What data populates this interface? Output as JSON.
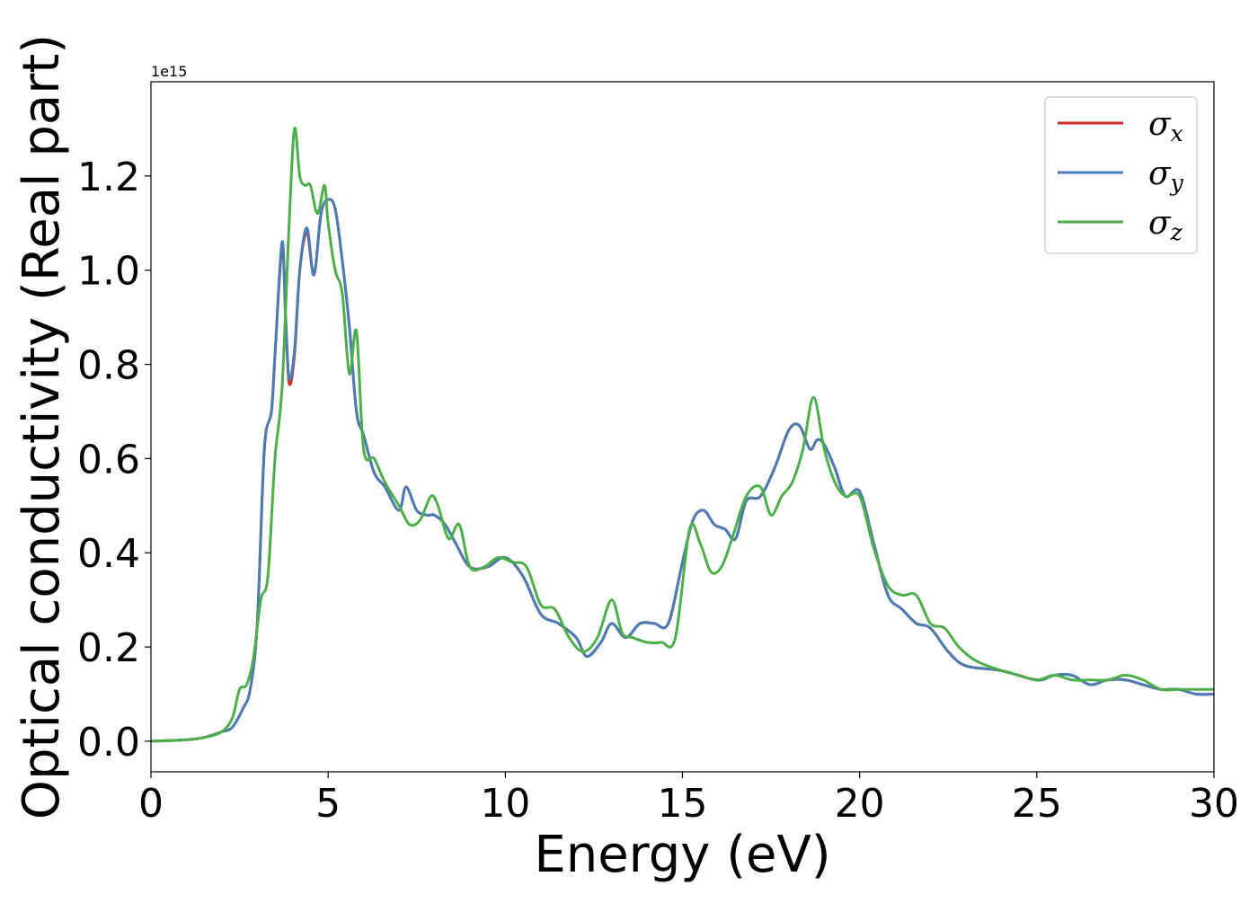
{
  "chart_data": {
    "type": "line",
    "xlabel": "Energy (eV)",
    "ylabel": "Optical conductivity (Real part)",
    "y_offset_label": "1e15",
    "xlim": [
      0,
      30
    ],
    "ylim": [
      -0.065,
      1.4
    ],
    "x_ticks": [
      0,
      5,
      10,
      15,
      20,
      25,
      30
    ],
    "x_tick_labels": [
      "0",
      "5",
      "10",
      "15",
      "20",
      "25",
      "30"
    ],
    "y_ticks": [
      0.0,
      0.2,
      0.4,
      0.6,
      0.8,
      1.0,
      1.2
    ],
    "y_tick_labels": [
      "0.0",
      "0.2",
      "0.4",
      "0.6",
      "0.8",
      "1.0",
      "1.2"
    ],
    "grid": false,
    "legend_position": "top-right",
    "series": [
      {
        "name": "σx",
        "symbol": "σ",
        "subscript": "x",
        "color": "#d62728",
        "x": [
          0,
          1,
          1.5,
          2,
          2.3,
          2.6,
          2.8,
          3.0,
          3.2,
          3.4,
          3.5,
          3.7,
          3.8,
          3.9,
          4.05,
          4.2,
          4.4,
          4.6,
          4.8,
          5.0,
          5.2,
          5.4,
          5.6,
          5.8,
          6.0,
          6.3,
          6.6,
          7.0,
          7.2,
          7.5,
          7.8,
          8.0,
          8.3,
          8.6,
          9.0,
          9.5,
          10.0,
          10.5,
          11.0,
          11.5,
          12.0,
          12.3,
          12.7,
          13.0,
          13.4,
          13.8,
          14.2,
          14.6,
          15.0,
          15.3,
          15.6,
          15.9,
          16.2,
          16.5,
          16.8,
          17.2,
          17.6,
          18.0,
          18.3,
          18.6,
          18.8,
          19.0,
          19.3,
          19.6,
          20.0,
          20.4,
          20.8,
          21.2,
          21.6,
          22.0,
          22.5,
          23.0,
          24.0,
          25.0,
          25.5,
          26.0,
          26.5,
          27.0,
          27.5,
          28.0,
          28.5,
          29.0,
          29.5,
          30.0
        ],
        "values": [
          0.0,
          0.003,
          0.008,
          0.02,
          0.03,
          0.07,
          0.11,
          0.25,
          0.62,
          0.7,
          0.82,
          1.05,
          0.9,
          0.76,
          0.82,
          1.0,
          1.08,
          0.99,
          1.12,
          1.15,
          1.13,
          1.02,
          0.88,
          0.7,
          0.65,
          0.57,
          0.54,
          0.49,
          0.54,
          0.49,
          0.48,
          0.48,
          0.46,
          0.42,
          0.37,
          0.37,
          0.39,
          0.35,
          0.27,
          0.25,
          0.22,
          0.18,
          0.21,
          0.25,
          0.22,
          0.25,
          0.25,
          0.25,
          0.38,
          0.47,
          0.49,
          0.46,
          0.45,
          0.43,
          0.51,
          0.52,
          0.58,
          0.66,
          0.67,
          0.62,
          0.64,
          0.63,
          0.58,
          0.52,
          0.53,
          0.42,
          0.31,
          0.28,
          0.25,
          0.24,
          0.19,
          0.16,
          0.15,
          0.13,
          0.14,
          0.14,
          0.12,
          0.13,
          0.13,
          0.12,
          0.11,
          0.11,
          0.1,
          0.1
        ]
      },
      {
        "name": "σy",
        "symbol": "σ",
        "subscript": "y",
        "color": "#4a7db5",
        "x": [
          0,
          1,
          1.5,
          2,
          2.3,
          2.6,
          2.8,
          3.0,
          3.2,
          3.4,
          3.5,
          3.7,
          3.8,
          3.9,
          4.05,
          4.2,
          4.4,
          4.6,
          4.8,
          5.0,
          5.2,
          5.4,
          5.6,
          5.8,
          6.0,
          6.3,
          6.6,
          7.0,
          7.2,
          7.5,
          7.8,
          8.0,
          8.3,
          8.6,
          9.0,
          9.5,
          10.0,
          10.5,
          11.0,
          11.5,
          12.0,
          12.3,
          12.7,
          13.0,
          13.4,
          13.8,
          14.2,
          14.6,
          15.0,
          15.3,
          15.6,
          15.9,
          16.2,
          16.5,
          16.8,
          17.2,
          17.6,
          18.0,
          18.3,
          18.6,
          18.8,
          19.0,
          19.3,
          19.6,
          20.0,
          20.4,
          20.8,
          21.2,
          21.6,
          22.0,
          22.5,
          23.0,
          24.0,
          25.0,
          25.5,
          26.0,
          26.5,
          27.0,
          27.5,
          28.0,
          28.5,
          29.0,
          29.5,
          30.0
        ],
        "values": [
          0.0,
          0.003,
          0.008,
          0.02,
          0.03,
          0.07,
          0.11,
          0.25,
          0.62,
          0.7,
          0.82,
          1.06,
          0.9,
          0.77,
          0.83,
          1.0,
          1.09,
          0.99,
          1.12,
          1.15,
          1.13,
          1.02,
          0.88,
          0.7,
          0.65,
          0.57,
          0.54,
          0.49,
          0.54,
          0.49,
          0.48,
          0.48,
          0.46,
          0.42,
          0.37,
          0.37,
          0.39,
          0.35,
          0.27,
          0.25,
          0.22,
          0.18,
          0.21,
          0.25,
          0.22,
          0.25,
          0.25,
          0.25,
          0.38,
          0.47,
          0.49,
          0.46,
          0.45,
          0.43,
          0.51,
          0.52,
          0.58,
          0.66,
          0.67,
          0.62,
          0.64,
          0.63,
          0.58,
          0.52,
          0.53,
          0.42,
          0.31,
          0.28,
          0.25,
          0.24,
          0.19,
          0.16,
          0.15,
          0.13,
          0.14,
          0.14,
          0.12,
          0.13,
          0.13,
          0.12,
          0.11,
          0.11,
          0.1,
          0.1
        ]
      },
      {
        "name": "σz",
        "symbol": "σ",
        "subscript": "z",
        "color": "#4daf4a",
        "x": [
          0,
          1,
          1.5,
          2,
          2.3,
          2.5,
          2.7,
          2.9,
          3.1,
          3.3,
          3.5,
          3.7,
          3.9,
          4.05,
          4.2,
          4.35,
          4.5,
          4.7,
          4.9,
          5.0,
          5.2,
          5.4,
          5.6,
          5.8,
          6.0,
          6.3,
          6.6,
          7.0,
          7.3,
          7.6,
          7.9,
          8.1,
          8.4,
          8.7,
          9.0,
          9.4,
          9.8,
          10.2,
          10.6,
          11.0,
          11.4,
          11.8,
          12.2,
          12.6,
          13.0,
          13.3,
          13.6,
          14.0,
          14.4,
          14.8,
          15.2,
          15.5,
          15.8,
          16.1,
          16.4,
          16.8,
          17.2,
          17.5,
          17.8,
          18.1,
          18.4,
          18.7,
          19.0,
          19.3,
          19.6,
          20.0,
          20.4,
          20.8,
          21.2,
          21.6,
          22.0,
          22.4,
          22.8,
          23.3,
          24.0,
          24.5,
          25.0,
          25.5,
          26.0,
          26.5,
          27.0,
          27.5,
          28.0,
          28.5,
          29.0,
          29.5,
          30.0
        ],
        "values": [
          0.0,
          0.003,
          0.008,
          0.02,
          0.05,
          0.11,
          0.12,
          0.18,
          0.3,
          0.35,
          0.6,
          0.75,
          1.1,
          1.3,
          1.2,
          1.18,
          1.18,
          1.12,
          1.18,
          1.1,
          1.0,
          0.95,
          0.78,
          0.87,
          0.62,
          0.6,
          0.55,
          0.5,
          0.46,
          0.47,
          0.52,
          0.5,
          0.43,
          0.46,
          0.37,
          0.37,
          0.39,
          0.38,
          0.37,
          0.29,
          0.28,
          0.22,
          0.19,
          0.22,
          0.3,
          0.23,
          0.22,
          0.21,
          0.21,
          0.22,
          0.45,
          0.42,
          0.36,
          0.37,
          0.43,
          0.52,
          0.54,
          0.48,
          0.52,
          0.55,
          0.62,
          0.73,
          0.62,
          0.55,
          0.52,
          0.52,
          0.41,
          0.33,
          0.31,
          0.31,
          0.25,
          0.24,
          0.2,
          0.17,
          0.15,
          0.14,
          0.13,
          0.14,
          0.13,
          0.13,
          0.13,
          0.14,
          0.13,
          0.11,
          0.11,
          0.11,
          0.11
        ]
      }
    ]
  }
}
